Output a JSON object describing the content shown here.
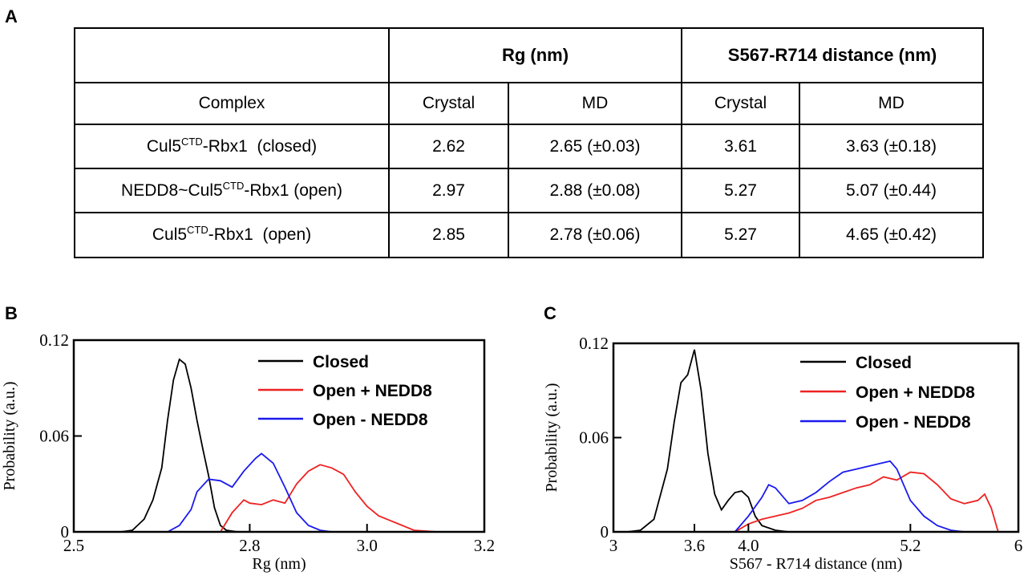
{
  "panels": {
    "a": "A",
    "b": "B",
    "c": "C"
  },
  "table": {
    "header_rg": "Rg (nm)",
    "header_dist": "S567-R714 distance (nm)",
    "sub_complex": "Complex",
    "sub_crystal": "Crystal",
    "sub_md": "MD",
    "rows": [
      {
        "pre": "Cul5",
        "sup": "CTD",
        "post": "-Rbx1  (closed)",
        "rg_crystal": "2.62",
        "rg_md": "2.65 (±0.03)",
        "d_crystal": "3.61",
        "d_md": "3.63 (±0.18)"
      },
      {
        "pre": "NEDD8~Cul5",
        "sup": "CTD",
        "post": "-Rbx1 (open)",
        "rg_crystal": "2.97",
        "rg_md": "2.88 (±0.08)",
        "d_crystal": "5.27",
        "d_md": "5.07 (±0.44)"
      },
      {
        "pre": "Cul5",
        "sup": "CTD",
        "post": "-Rbx1  (open)",
        "rg_crystal": "2.85",
        "rg_md": "2.78 (±0.06)",
        "d_crystal": "5.27",
        "d_md": "4.65 (±0.42)"
      }
    ]
  },
  "colors": {
    "closed": "#000000",
    "open_plus": "#ee2222",
    "open_minus": "#1a1aee"
  },
  "chart_data": [
    {
      "type": "line",
      "panel": "B",
      "xlabel": "Rg (nm)",
      "ylabel": "Probability (a.u.)",
      "xlim": [
        2.5,
        3.2
      ],
      "ylim": [
        0,
        0.12
      ],
      "xticks": [
        "2.5",
        "2.8",
        "3.0",
        "3.2"
      ],
      "xtick_values": [
        2.5,
        2.8,
        3.0,
        3.2
      ],
      "yticks": [
        "0",
        "0.06",
        "0.12"
      ],
      "ytick_values": [
        0,
        0.06,
        0.12
      ],
      "legend": [
        "Closed",
        "Open + NEDD8",
        "Open - NEDD8"
      ],
      "series": [
        {
          "name": "Closed",
          "x": [
            2.58,
            2.6,
            2.62,
            2.635,
            2.65,
            2.66,
            2.67,
            2.68,
            2.69,
            2.7,
            2.71,
            2.72,
            2.73,
            2.74,
            2.75,
            2.76,
            2.78
          ],
          "y": [
            0,
            0.001,
            0.008,
            0.02,
            0.04,
            0.07,
            0.095,
            0.108,
            0.105,
            0.09,
            0.07,
            0.052,
            0.035,
            0.015,
            0.004,
            0.001,
            0
          ]
        },
        {
          "name": "Open + NEDD8",
          "x": [
            2.75,
            2.77,
            2.79,
            2.8,
            2.82,
            2.84,
            2.86,
            2.88,
            2.9,
            2.92,
            2.94,
            2.96,
            2.98,
            3.0,
            3.02,
            3.04,
            3.06,
            3.08,
            3.12
          ],
          "y": [
            0,
            0.012,
            0.02,
            0.018,
            0.017,
            0.02,
            0.018,
            0.03,
            0.038,
            0.042,
            0.04,
            0.036,
            0.025,
            0.016,
            0.01,
            0.007,
            0.004,
            0.001,
            0
          ]
        },
        {
          "name": "Open - NEDD8",
          "x": [
            2.66,
            2.68,
            2.7,
            2.71,
            2.73,
            2.75,
            2.77,
            2.79,
            2.81,
            2.82,
            2.84,
            2.86,
            2.88,
            2.9,
            2.92,
            2.94
          ],
          "y": [
            0,
            0.004,
            0.014,
            0.025,
            0.033,
            0.032,
            0.028,
            0.038,
            0.046,
            0.049,
            0.043,
            0.028,
            0.012,
            0.004,
            0.001,
            0
          ]
        }
      ]
    },
    {
      "type": "line",
      "panel": "C",
      "xlabel": "S567 - R714 distance (nm)",
      "ylabel": "Probability (a.u.)",
      "xlim": [
        3,
        6
      ],
      "ylim": [
        0,
        0.12
      ],
      "xticks": [
        "3",
        "3.6",
        "4.0",
        "5.2",
        "6"
      ],
      "xtick_values": [
        3,
        3.6,
        4.0,
        5.2,
        6
      ],
      "yticks": [
        "0",
        "0.06",
        "0.12"
      ],
      "ytick_values": [
        0,
        0.06,
        0.12
      ],
      "legend": [
        "Closed",
        "Open + NEDD8",
        "Open - NEDD8"
      ],
      "series": [
        {
          "name": "Closed",
          "x": [
            3.1,
            3.2,
            3.3,
            3.4,
            3.45,
            3.5,
            3.55,
            3.6,
            3.65,
            3.7,
            3.75,
            3.8,
            3.85,
            3.9,
            3.95,
            4.0,
            4.05,
            4.1,
            4.2,
            4.3
          ],
          "y": [
            0,
            0.001,
            0.008,
            0.04,
            0.07,
            0.095,
            0.1,
            0.116,
            0.09,
            0.05,
            0.024,
            0.014,
            0.02,
            0.025,
            0.026,
            0.022,
            0.01,
            0.004,
            0.001,
            0
          ]
        },
        {
          "name": "Open + NEDD8",
          "x": [
            3.9,
            4.0,
            4.1,
            4.2,
            4.3,
            4.4,
            4.5,
            4.6,
            4.7,
            4.8,
            4.9,
            5.0,
            5.1,
            5.2,
            5.3,
            5.4,
            5.5,
            5.6,
            5.7,
            5.75,
            5.8,
            5.85
          ],
          "y": [
            0,
            0.005,
            0.008,
            0.01,
            0.012,
            0.015,
            0.02,
            0.022,
            0.025,
            0.028,
            0.03,
            0.035,
            0.033,
            0.038,
            0.037,
            0.03,
            0.021,
            0.018,
            0.02,
            0.024,
            0.015,
            0
          ]
        },
        {
          "name": "Open - NEDD8",
          "x": [
            3.9,
            4.0,
            4.1,
            4.15,
            4.2,
            4.3,
            4.4,
            4.5,
            4.6,
            4.7,
            4.8,
            4.9,
            5.0,
            5.05,
            5.1,
            5.15,
            5.2,
            5.3,
            5.4,
            5.5,
            5.6
          ],
          "y": [
            0,
            0.01,
            0.022,
            0.03,
            0.028,
            0.018,
            0.02,
            0.025,
            0.032,
            0.038,
            0.04,
            0.042,
            0.044,
            0.045,
            0.04,
            0.03,
            0.02,
            0.01,
            0.004,
            0.001,
            0
          ]
        }
      ]
    }
  ]
}
